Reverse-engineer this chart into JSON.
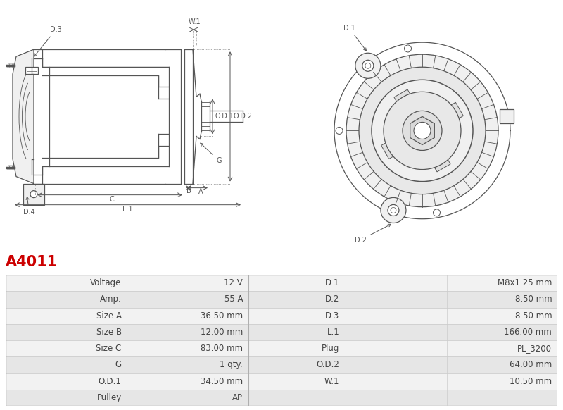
{
  "title": "A4011",
  "title_color": "#cc0000",
  "table_rows": [
    [
      "Voltage",
      "12 V",
      "D.1",
      "M8x1.25 mm"
    ],
    [
      "Amp.",
      "55 A",
      "D.2",
      "8.50 mm"
    ],
    [
      "Size A",
      "36.50 mm",
      "D.3",
      "8.50 mm"
    ],
    [
      "Size B",
      "12.00 mm",
      "L.1",
      "166.00 mm"
    ],
    [
      "Size C",
      "83.00 mm",
      "Plug",
      "PL_3200"
    ],
    [
      "G",
      "1 qty.",
      "O.D.2",
      "64.00 mm"
    ],
    [
      "O.D.1",
      "34.50 mm",
      "W.1",
      "10.50 mm"
    ],
    [
      "Pulley",
      "AP",
      "",
      ""
    ]
  ],
  "row_bg_odd": "#f2f2f2",
  "row_bg_even": "#e6e6e6",
  "text_color": "#444444",
  "fig_bg": "#ffffff"
}
